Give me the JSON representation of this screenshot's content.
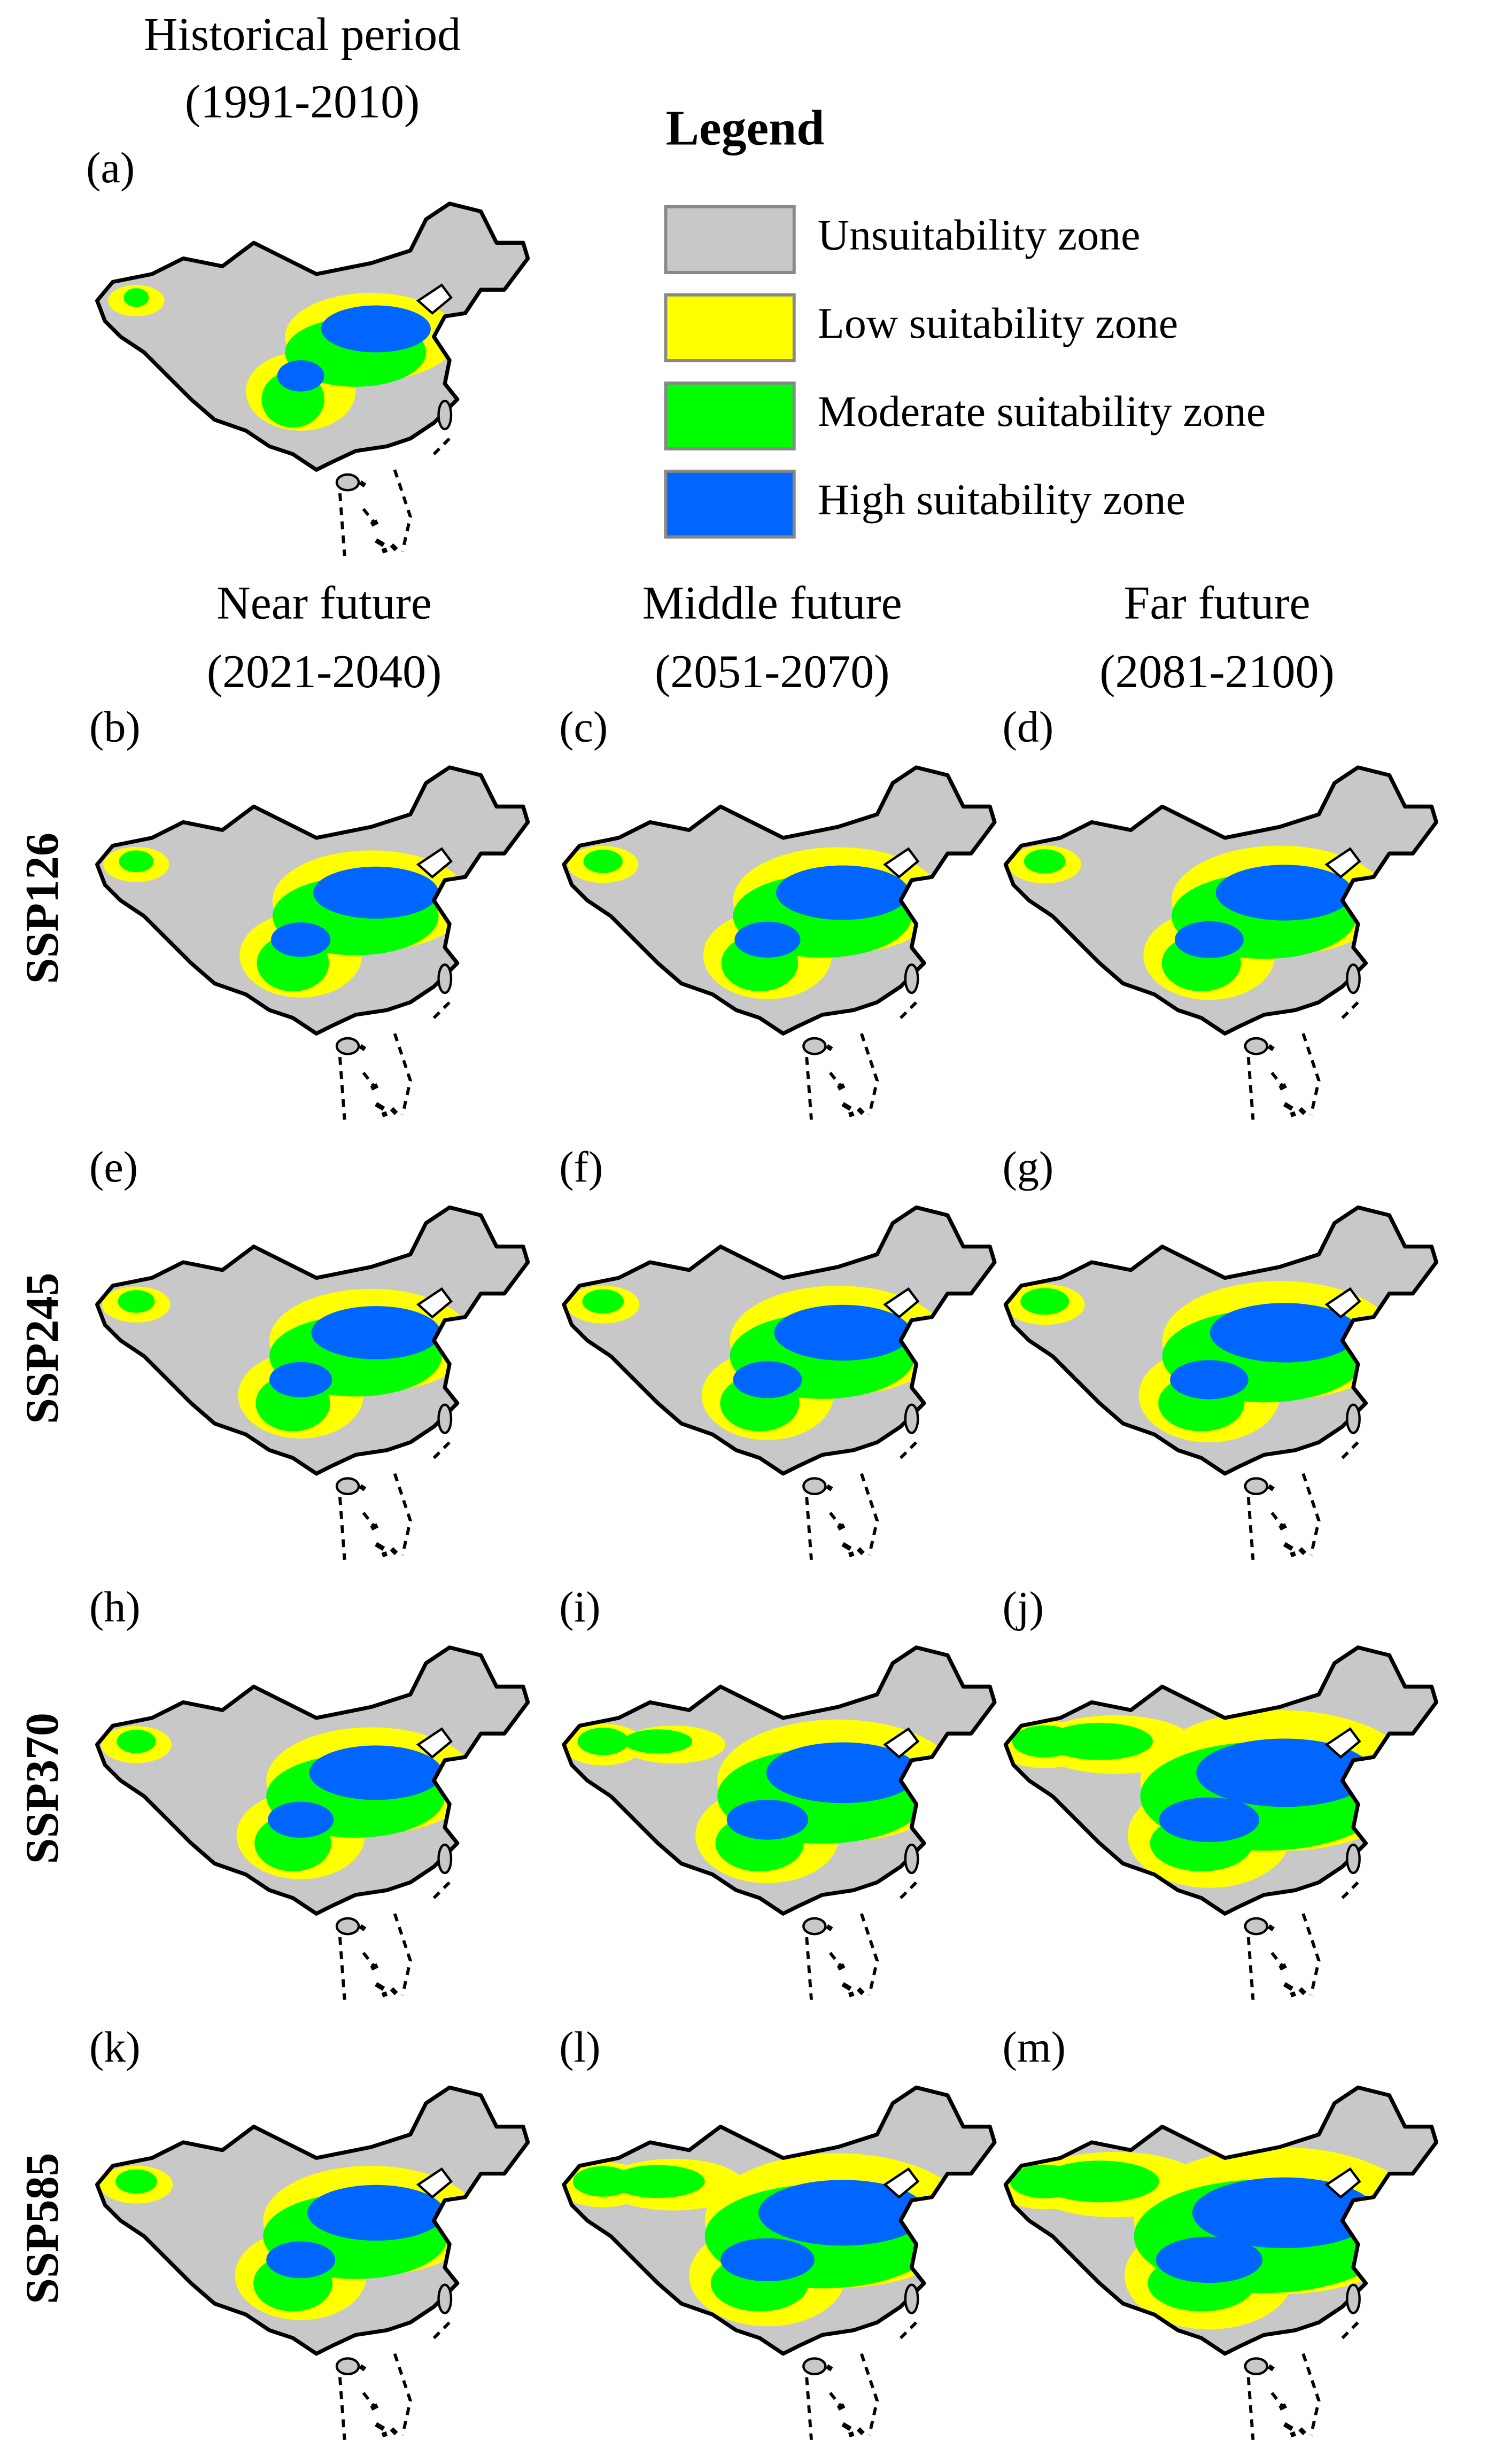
{
  "historical": {
    "title": "Historical period",
    "period": "(1991-2010)",
    "label": "(a)"
  },
  "legend": {
    "title": "Legend",
    "items": [
      {
        "label": "Unsuitability zone",
        "color": "#c8c8c8"
      },
      {
        "label": "Low suitability zone",
        "color": "#ffff00"
      },
      {
        "label": "Moderate suitability zone",
        "color": "#00ff00"
      },
      {
        "label": "High suitability zone",
        "color": "#0066ff"
      }
    ]
  },
  "columns": [
    {
      "title": "Near future",
      "period": "(2021-2040)"
    },
    {
      "title": "Middle future",
      "period": "(2051-2070)"
    },
    {
      "title": "Far future",
      "period": "(2081-2100)"
    }
  ],
  "rows": [
    {
      "scenario": "SSP126",
      "panels": [
        "(b)",
        "(c)",
        "(d)"
      ]
    },
    {
      "scenario": "SSP245",
      "panels": [
        "(e)",
        "(f)",
        "(g)"
      ]
    },
    {
      "scenario": "SSP370",
      "panels": [
        "(h)",
        "(i)",
        "(j)"
      ]
    },
    {
      "scenario": "SSP585",
      "panels": [
        "(k)",
        "(l)",
        "(m)"
      ]
    }
  ]
}
